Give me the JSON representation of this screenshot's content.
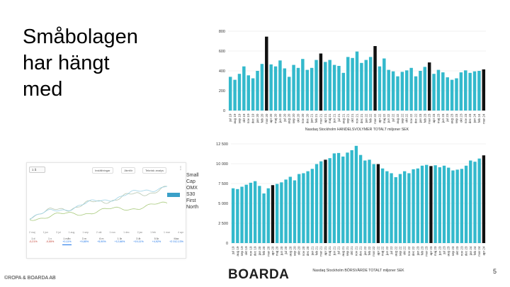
{
  "slide": {
    "title_lines": [
      "Småbolagen",
      "har hängt",
      "med"
    ],
    "copyright": "©ROPA & BOARDA AB",
    "logo": "BOARDA",
    "page_number": "5"
  },
  "inset": {
    "period": "1 å",
    "buttons": [
      "Inställningar",
      "Jämför",
      "Teknisk analys"
    ],
    "more": "⋮",
    "x_labels": [
      "2 maj",
      "1 jun",
      "3 jul",
      "1 aug",
      "1 sep",
      "2 okt",
      "1 nov",
      "1 dec",
      "2 jan",
      "1 feb",
      "1 mar",
      "4 apr"
    ],
    "periods": [
      {
        "label": "1 d",
        "value": "-0,21%",
        "dir": "down"
      },
      {
        "label": "1 v",
        "value": "-0,55%",
        "dir": "down"
      },
      {
        "label": "1 mån",
        "value": "+0,11%",
        "dir": "up"
      },
      {
        "label": "3 m",
        "value": "+9,85%",
        "dir": "up"
      },
      {
        "label": "6 m",
        "value": "+5,90%",
        "dir": "up"
      },
      {
        "label": "1 år",
        "value": "+12,66%",
        "dir": "up"
      },
      {
        "label": "3 år",
        "value": "+19,11%",
        "dir": "up"
      },
      {
        "label": "5 år",
        "value": "+4,92%",
        "dir": "up"
      },
      {
        "label": "Max",
        "value": "+2 012,13%",
        "dir": "up"
      }
    ],
    "legend": [
      "Small",
      "Cap",
      "OMX",
      "S30",
      "First",
      "North"
    ],
    "colors": {
      "green": "#a7c97a",
      "blue": "#9fd3e6",
      "dark": "#b6c7b0"
    }
  },
  "chart_data": [
    {
      "type": "bar",
      "title": "Nasdaq Stockholm HANDELSVOLYMER TOTALT miljoner SEK",
      "ylim": [
        0,
        800
      ],
      "yticks": [
        0,
        200,
        400,
        600,
        800
      ],
      "bar_color": "#33b9cc",
      "highlight_color": "#111111",
      "highlight_indices": [
        8,
        20,
        32,
        44,
        56
      ],
      "categories": [
        "jul 19",
        "aug 19",
        "sep 19",
        "okt 19",
        "nov 19",
        "dec 19",
        "jan 20",
        "feb 20",
        "mar 20",
        "apr 20",
        "maj 20",
        "jun 20",
        "jul 20",
        "aug 20",
        "sep 20",
        "okt 20",
        "nov 20",
        "dec 20",
        "jan 21",
        "feb 21",
        "mar 21",
        "apr 21",
        "maj 21",
        "jun 21",
        "jul 21",
        "aug 21",
        "sep 21",
        "okt 21",
        "nov 21",
        "dec 21",
        "jan 22",
        "feb 22",
        "mar 22",
        "apr 22",
        "maj 22",
        "jun 22",
        "jul 22",
        "aug 22",
        "sep 22",
        "okt 22",
        "nov 22",
        "dec 22",
        "jan 23",
        "feb 23",
        "mar 23",
        "apr 23",
        "maj 23",
        "jun 23",
        "jul 23",
        "aug 23",
        "sep 23",
        "okt 23",
        "nov 23",
        "dec 23",
        "jan 24",
        "feb 24",
        "mar 24"
      ],
      "values": [
        340,
        310,
        370,
        445,
        355,
        325,
        400,
        470,
        745,
        465,
        445,
        505,
        425,
        340,
        460,
        430,
        520,
        410,
        430,
        510,
        575,
        490,
        510,
        460,
        450,
        380,
        540,
        530,
        595,
        480,
        510,
        540,
        650,
        445,
        525,
        410,
        395,
        345,
        390,
        405,
        430,
        345,
        400,
        440,
        485,
        370,
        410,
        385,
        335,
        310,
        325,
        385,
        405,
        380,
        395,
        400,
        415
      ]
    },
    {
      "type": "bar",
      "title": "Nasdaq Stockholm BÖRSVÄRDE TOTALT miljoner SEK",
      "ylim": [
        0,
        12500
      ],
      "yticks": [
        0,
        2500,
        5000,
        7500,
        10000,
        12500
      ],
      "ytick_labels": [
        "0",
        "2 500",
        "5 000",
        "7 500",
        "10 000",
        "12 500"
      ],
      "bar_color": "#33b9cc",
      "highlight_color": "#111111",
      "highlight_indices": [
        9,
        21,
        33,
        45,
        57
      ],
      "categories": [
        "jul 19",
        "aug 19",
        "sep 19",
        "okt 19",
        "nov 19",
        "dec 19",
        "jan 20",
        "feb 20",
        "mar 20",
        "apr 20",
        "maj 20",
        "jun 20",
        "jul 20",
        "aug 20",
        "sep 20",
        "okt 20",
        "nov 20",
        "dec 20",
        "jan 21",
        "feb 21",
        "mar 21",
        "apr 21",
        "maj 21",
        "jun 21",
        "jul 21",
        "aug 21",
        "sep 21",
        "okt 21",
        "nov 21",
        "dec 21",
        "jan 22",
        "feb 22",
        "mar 22",
        "apr 22",
        "maj 22",
        "jun 22",
        "jul 22",
        "aug 22",
        "sep 22",
        "okt 22",
        "nov 22",
        "dec 22",
        "jan 23",
        "feb 23",
        "mar 23",
        "apr 23",
        "maj 23",
        "jun 23",
        "jul 23",
        "aug 23",
        "sep 23",
        "okt 23",
        "nov 23",
        "dec 23",
        "jan 24",
        "feb 24",
        "mar 24",
        "apr 24"
      ],
      "values": [
        6900,
        6800,
        7100,
        7350,
        7600,
        7800,
        7200,
        6250,
        6900,
        7300,
        7450,
        7650,
        8000,
        8350,
        7900,
        8700,
        8800,
        9050,
        9350,
        9950,
        10300,
        10500,
        10700,
        11300,
        11350,
        10900,
        11400,
        11700,
        12250,
        11100,
        10400,
        10500,
        9950,
        9950,
        9400,
        9050,
        8800,
        8300,
        8700,
        9050,
        8800,
        9300,
        9400,
        9750,
        9850,
        9700,
        9800,
        9550,
        9750,
        9500,
        9150,
        9250,
        9350,
        9750,
        10400,
        10250,
        10650,
        11050
      ]
    }
  ]
}
